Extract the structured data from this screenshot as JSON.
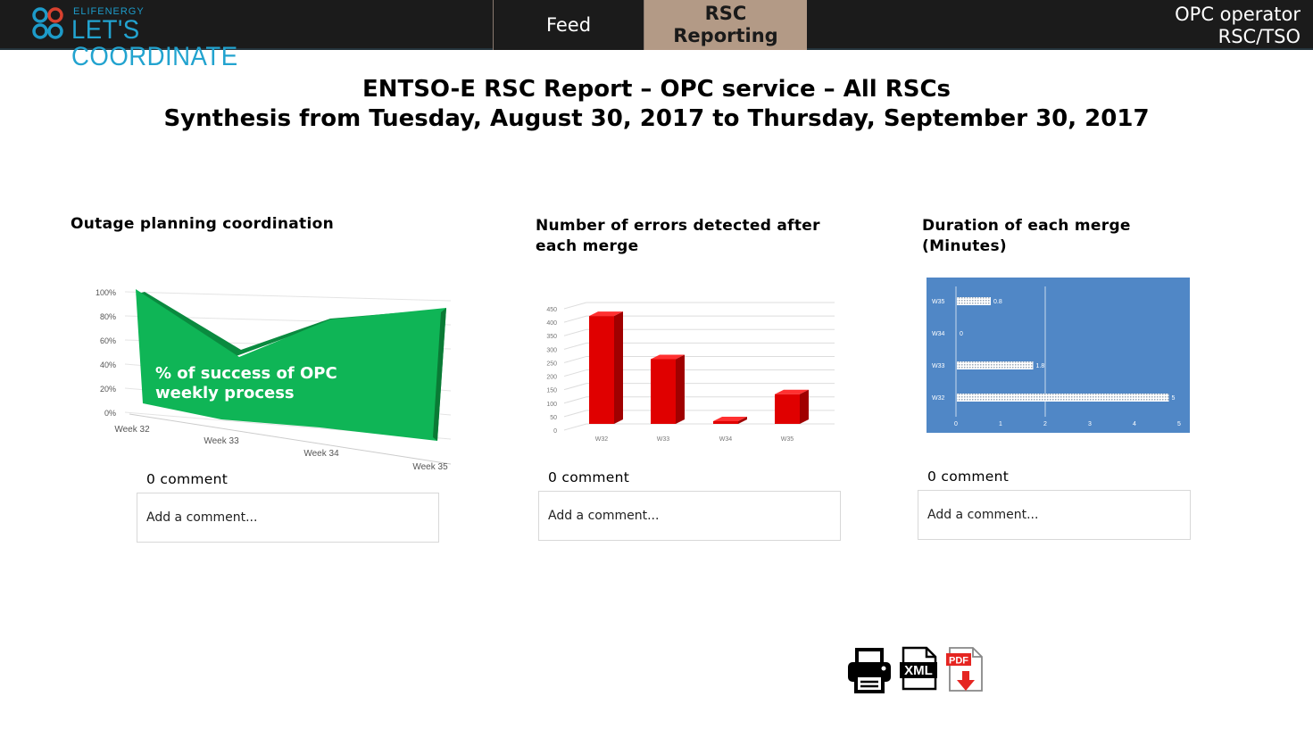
{
  "header": {
    "logo_small": "ELIFENERGY",
    "logo_main": "LET'S COORDINATE",
    "tabs": [
      {
        "label": "Feed",
        "active": false
      },
      {
        "label": "RSC\nReporting",
        "active": true
      }
    ],
    "user_line1": "OPC operator",
    "user_line2": "RSC/TSO",
    "colors": {
      "bar_bg": "#1b1b1b",
      "active_tab": "#b39a86",
      "logo": "#22a3cf"
    }
  },
  "report": {
    "title_line1": "ENTSO-E RSC Report – OPC service – All RSCs",
    "title_line2": "Synthesis from Tuesday, August 30, 2017 to Thursday, September 30, 2017"
  },
  "panels": [
    {
      "title": "Outage planning coordination",
      "comment_count": "0 comment",
      "comment_placeholder": "Add a comment..."
    },
    {
      "title": "Number of errors detected after each merge",
      "comment_count": "0 comment",
      "comment_placeholder": "Add a comment..."
    },
    {
      "title": "Duration of each merge (Minutes)",
      "comment_count": "0 comment",
      "comment_placeholder": "Add a comment..."
    }
  ],
  "chart_data": [
    {
      "type": "area",
      "categories": [
        "Week 32",
        "Week 33",
        "Week 34",
        "Week 35"
      ],
      "values": [
        100,
        50,
        80,
        88
      ],
      "y_ticks": [
        "0%",
        "20%",
        "40%",
        "60%",
        "80%",
        "100%"
      ],
      "ylim": [
        0,
        100
      ],
      "annotation": "% of success of OPC weekly process",
      "color": "#0fb556",
      "grid": true
    },
    {
      "type": "bar",
      "categories": [
        "W32",
        "W33",
        "W34",
        "W35"
      ],
      "values": [
        400,
        240,
        10,
        110
      ],
      "y_ticks": [
        "0",
        "50",
        "100",
        "150",
        "200",
        "250",
        "300",
        "350",
        "400",
        "450"
      ],
      "ylim": [
        0,
        450
      ],
      "color": "#e00000",
      "grid": true
    },
    {
      "type": "bar",
      "orientation": "horizontal",
      "categories": [
        "W35",
        "W34",
        "W33",
        "W32"
      ],
      "values": [
        0.8,
        0,
        1.8,
        5
      ],
      "data_labels": [
        "0.8",
        "0",
        "1.8",
        "5"
      ],
      "x_ticks": [
        "0",
        "1",
        "2",
        "3",
        "4",
        "5"
      ],
      "xlim": [
        0,
        5
      ],
      "background": "#5087c6",
      "grid": true
    }
  ],
  "exports": [
    {
      "icon": "printer-icon"
    },
    {
      "icon": "xml-icon",
      "label": "XML"
    },
    {
      "icon": "pdf-icon",
      "label": "PDF"
    }
  ]
}
